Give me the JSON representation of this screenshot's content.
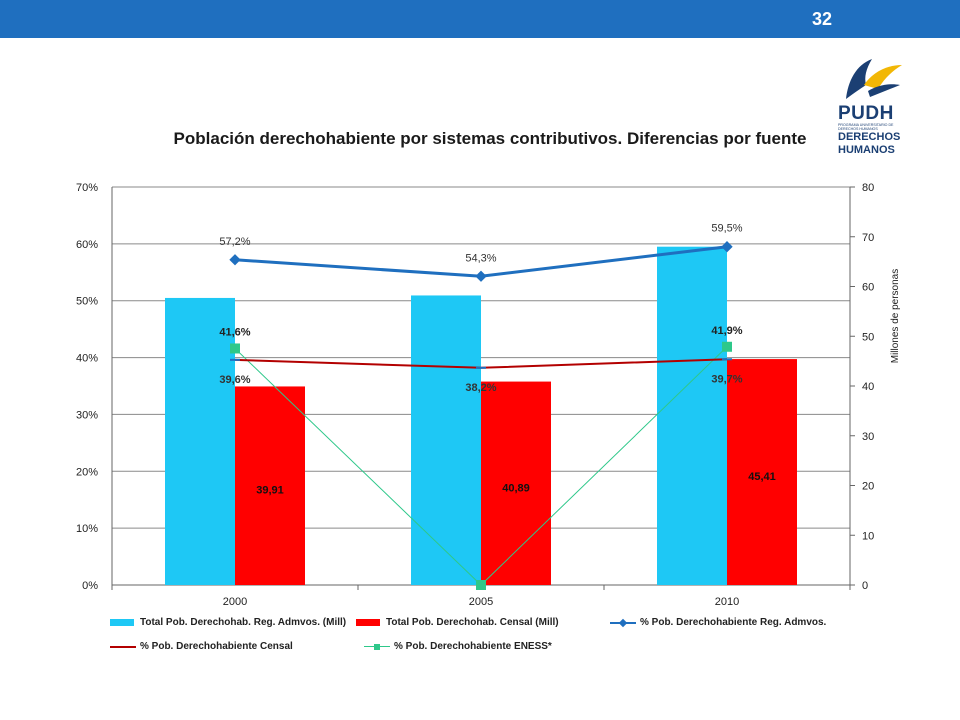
{
  "page": {
    "number": "32"
  },
  "logo": {
    "brand": "PUDH",
    "tagline": "PROGRAMA UNIVERSITARIO DE DERECHOS HUMANOS",
    "line1": "DERECHOS",
    "line2": "HUMANOS"
  },
  "colors": {
    "topbar": "#1f6fbf",
    "bar_admin": "#1ec8f5",
    "bar_censal": "#ff0000",
    "line_admin": "#1f6fbf",
    "line_censal": "#b30000",
    "line_eness": "#2ec88a"
  },
  "chart_data": {
    "type": "bar",
    "title": "Población derechohabiente por sistemas contributivos. Diferencias por fuente",
    "categories": [
      "2000",
      "2005",
      "2010"
    ],
    "ylim": [
      0,
      0.7
    ],
    "y_ticks": [
      "0%",
      "10%",
      "20%",
      "30%",
      "40%",
      "50%",
      "60%",
      "70%"
    ],
    "y2label": "Millones de personas",
    "y2lim": [
      0,
      80
    ],
    "y2_ticks": [
      "0",
      "10",
      "20",
      "30",
      "40",
      "50",
      "60",
      "70",
      "80"
    ],
    "grid": true,
    "legend_position": "bottom",
    "series": [
      {
        "name": "Total Pob. Derechohab. Reg. Admvos. (Mill)",
        "kind": "bar",
        "axis": "right",
        "values": [
          57.7,
          58.2,
          68.0
        ],
        "labels": [
          "",
          "",
          ""
        ]
      },
      {
        "name": "Total Pob. Derechohab. Censal (Mill)",
        "kind": "bar",
        "axis": "right",
        "values": [
          39.91,
          40.89,
          45.41
        ],
        "labels": [
          "39,91",
          "40,89",
          "45,41"
        ]
      },
      {
        "name": "% Pob. Derechohabiente Reg. Admvos.",
        "kind": "line",
        "axis": "left",
        "marker": "diamond",
        "values": [
          0.572,
          0.543,
          0.595
        ],
        "labels": [
          "57,2%",
          "54,3%",
          "59,5%"
        ]
      },
      {
        "name": "% Pob. Derechohabiente Censal",
        "kind": "line",
        "axis": "left",
        "marker": "dash",
        "values": [
          0.396,
          0.382,
          0.397
        ],
        "labels": [
          "39,6%",
          "38,2%",
          "39,7%"
        ]
      },
      {
        "name": "% Pob. Derechohabiente ENESS*",
        "kind": "line",
        "axis": "left",
        "marker": "square",
        "values": [
          0.416,
          0.0,
          0.419
        ],
        "labels": [
          "41,6%",
          "",
          "41,9%"
        ]
      }
    ]
  }
}
